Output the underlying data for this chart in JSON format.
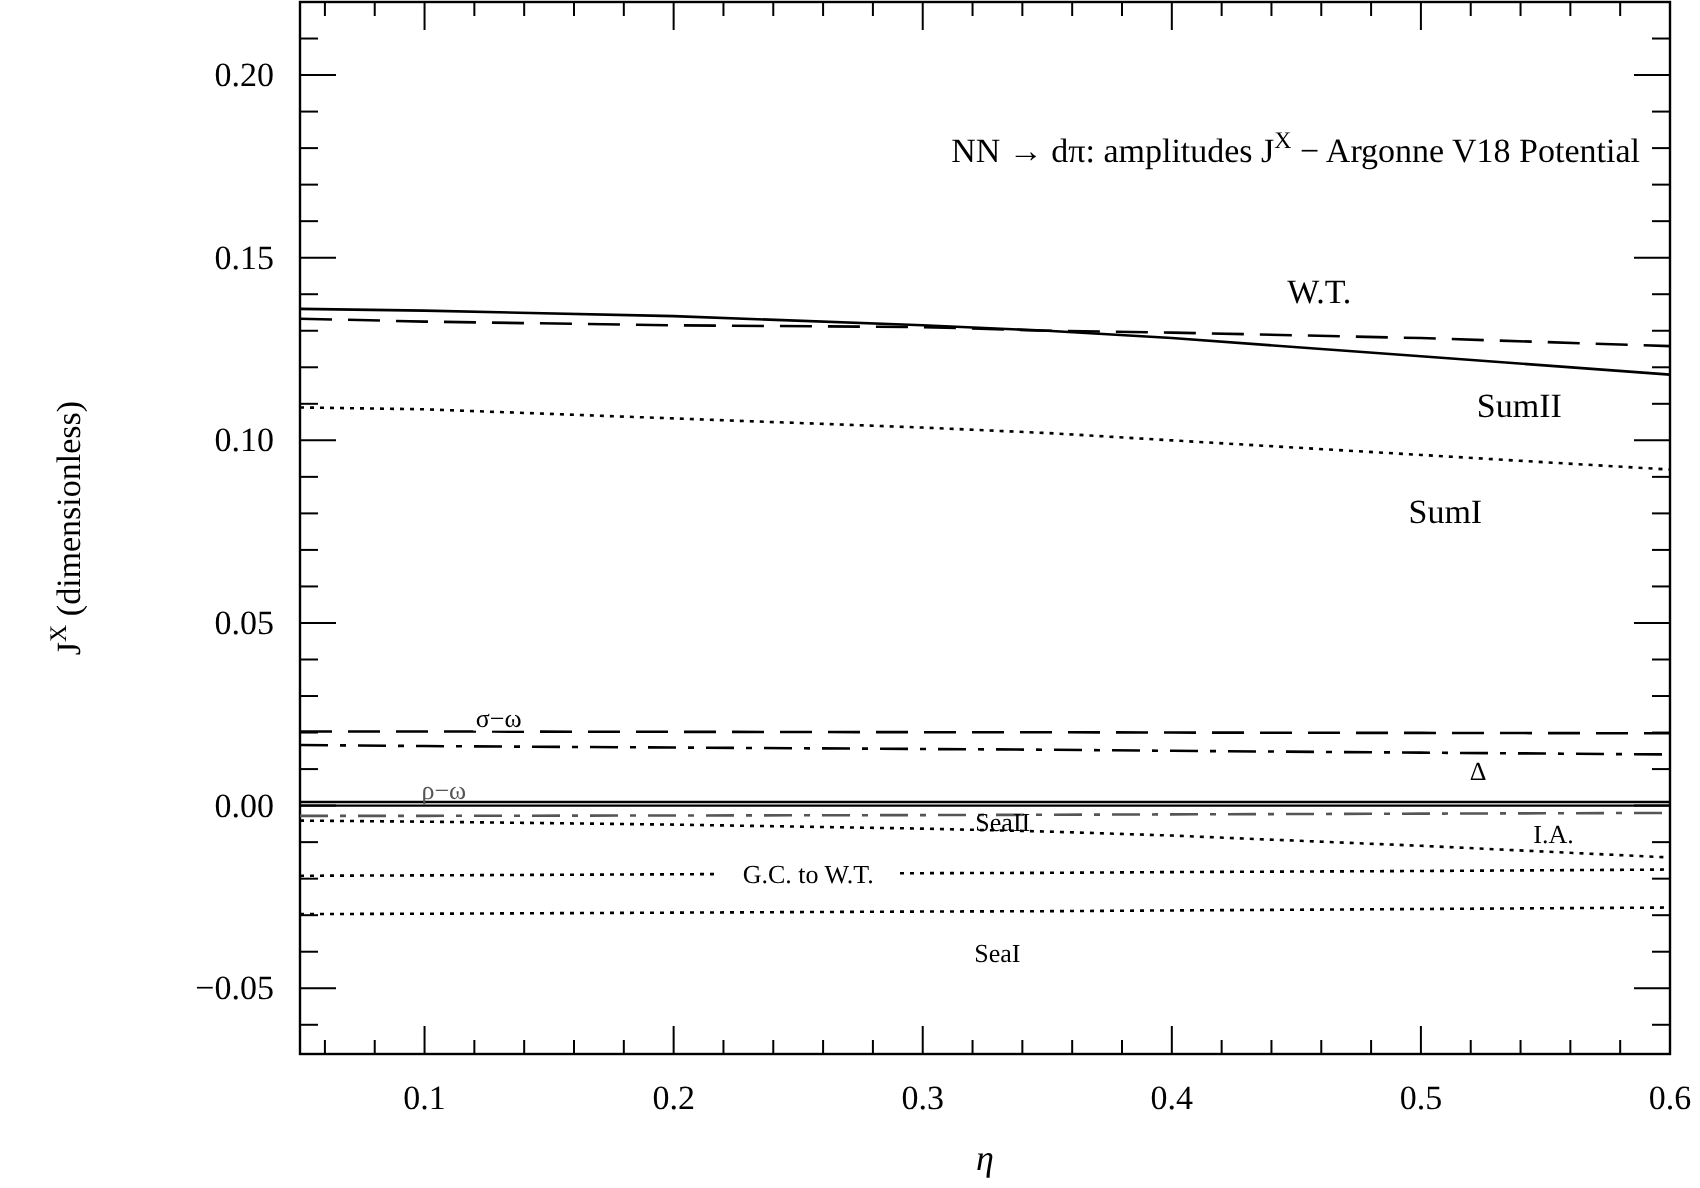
{
  "chart_data": {
    "type": "line",
    "title": "NN → dπ: amplitudes J$^{X}$ − Argonne V18 Potential",
    "xlabel": "η",
    "ylabel": "J$^{X}$ (dimensionless)",
    "x": [
      0.05,
      0.1,
      0.2,
      0.3,
      0.35,
      0.4,
      0.5,
      0.6
    ],
    "xlim": [
      0.05,
      0.6
    ],
    "ylim": [
      -0.068,
      0.22
    ],
    "xticks": [
      {
        "value": 0.06,
        "label": null
      },
      {
        "value": 0.08,
        "label": null
      },
      0.1,
      {
        "value": 0.12,
        "label": null
      },
      {
        "value": 0.14,
        "label": null
      },
      {
        "value": 0.16,
        "label": null
      },
      {
        "value": 0.18,
        "label": null
      },
      0.2,
      {
        "value": 0.22,
        "label": null
      },
      {
        "value": 0.24,
        "label": null
      },
      {
        "value": 0.26,
        "label": null
      },
      {
        "value": 0.28,
        "label": null
      },
      0.3,
      {
        "value": 0.32,
        "label": null
      },
      {
        "value": 0.34,
        "label": null
      },
      {
        "value": 0.36,
        "label": null
      },
      {
        "value": 0.38,
        "label": null
      },
      0.4,
      {
        "value": 0.42,
        "label": null
      },
      {
        "value": 0.44,
        "label": null
      },
      {
        "value": 0.46,
        "label": null
      },
      {
        "value": 0.48,
        "label": null
      },
      0.5,
      {
        "value": 0.52,
        "label": null
      },
      {
        "value": 0.54,
        "label": null
      },
      {
        "value": 0.56,
        "label": null
      },
      {
        "value": 0.58,
        "label": null
      },
      0.6
    ],
    "yticks": [
      {
        "value": -0.06,
        "label": null
      },
      {
        "value": -0.05,
        "label": "−0.05"
      },
      {
        "value": -0.04,
        "label": null
      },
      {
        "value": -0.03,
        "label": null
      },
      {
        "value": -0.02,
        "label": null
      },
      {
        "value": -0.01,
        "label": null
      },
      {
        "value": 0,
        "label": "0.00"
      },
      {
        "value": 0.01,
        "label": null
      },
      {
        "value": 0.02,
        "label": null
      },
      {
        "value": 0.03,
        "label": null
      },
      {
        "value": 0.04,
        "label": null
      },
      {
        "value": 0.05,
        "label": "0.05"
      },
      {
        "value": 0.06,
        "label": null
      },
      {
        "value": 0.07,
        "label": null
      },
      {
        "value": 0.08,
        "label": null
      },
      {
        "value": 0.09,
        "label": null
      },
      {
        "value": 0.1,
        "label": "0.10"
      },
      {
        "value": 0.11,
        "label": null
      },
      {
        "value": 0.12,
        "label": null
      },
      {
        "value": 0.13,
        "label": null
      },
      {
        "value": 0.14,
        "label": null
      },
      {
        "value": 0.15,
        "label": "0.15"
      },
      {
        "value": 0.16,
        "label": null
      },
      {
        "value": 0.17,
        "label": null
      },
      {
        "value": 0.18,
        "label": null
      },
      {
        "value": 0.19,
        "label": null
      },
      {
        "value": 0.2,
        "label": "0.20"
      },
      {
        "value": 0.21,
        "label": null
      }
    ],
    "grid": false,
    "legend": false,
    "marker": "none",
    "series": [
      {
        "name": "SumII",
        "color": "#000000",
        "line_style": "solid",
        "values": [
          0.136,
          0.1355,
          0.134,
          0.1315,
          0.13,
          0.128,
          0.123,
          0.118
        ]
      },
      {
        "name": "W.T.",
        "color": "#000000",
        "line_style": "dashed",
        "values": [
          0.1333,
          0.1325,
          0.1315,
          0.131,
          0.13,
          0.1295,
          0.128,
          0.1258
        ]
      },
      {
        "name": "SumI",
        "color": "#000000",
        "line_style": "dotted",
        "values": [
          0.109,
          0.1085,
          0.106,
          0.1035,
          0.102,
          0.1,
          0.096,
          0.092
        ]
      },
      {
        "name": "σ−ω",
        "color": "#000000",
        "line_style": "dashed",
        "values": [
          0.0203,
          0.0203,
          0.0202,
          0.0201,
          0.0201,
          0.02,
          0.0199,
          0.0198
        ]
      },
      {
        "name": "Δ",
        "color": "#000000",
        "line_style": "dashdot",
        "values": [
          0.0166,
          0.0163,
          0.0159,
          0.0155,
          0.0153,
          0.015,
          0.0145,
          0.014
        ]
      },
      {
        "name": "ρ−ω",
        "color": "#555555",
        "line_style": "dashdot",
        "values": [
          -0.0028,
          -0.0028,
          -0.0027,
          -0.0026,
          -0.0025,
          -0.0024,
          -0.0022,
          -0.002
        ]
      },
      {
        "name": "I.A.",
        "color": "#000000",
        "line_style": "dotted",
        "values": [
          -0.0041,
          -0.0044,
          -0.0052,
          -0.0063,
          -0.0071,
          -0.0082,
          -0.011,
          -0.0142
        ]
      },
      {
        "name": "G.C. to W.T.",
        "color": "#000000",
        "line_style": "dotted",
        "values": [
          -0.0192,
          -0.0191,
          -0.0188,
          -0.0185,
          -0.0184,
          -0.0182,
          -0.0179,
          -0.0175
        ]
      },
      {
        "name": "SeaI",
        "color": "#000000",
        "line_style": "dotted",
        "values": [
          -0.0297,
          -0.0296,
          -0.0293,
          -0.029,
          -0.0289,
          -0.0287,
          -0.0283,
          -0.0279
        ]
      },
      {
        "name": "SeaII",
        "color": "#000000",
        "line_style": "solid",
        "values": [
          0.001,
          0.001,
          0.001,
          0.001,
          0.001,
          0.001,
          0.001,
          0.001
        ]
      }
    ],
    "ref_lines": [
      {
        "axis": "y",
        "value": 0,
        "color": "#000000",
        "line_style": "solid"
      }
    ]
  }
}
